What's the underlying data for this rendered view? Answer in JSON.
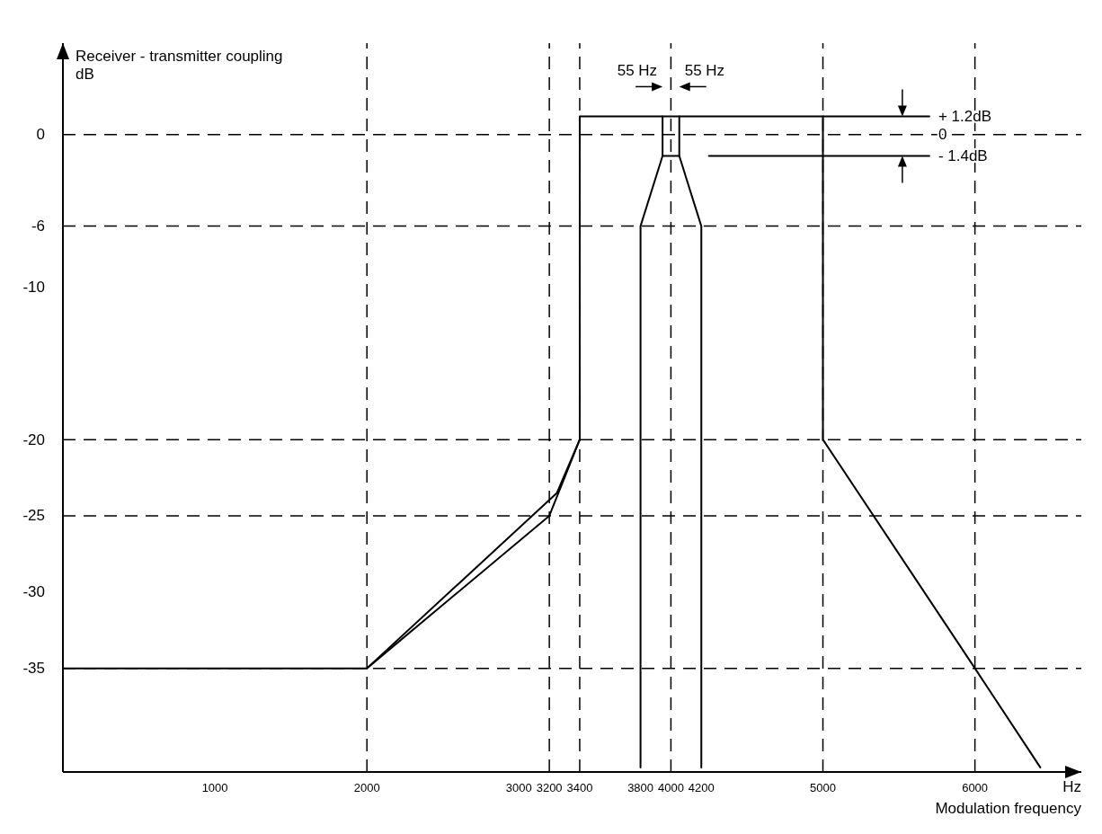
{
  "chart_data": {
    "type": "line",
    "ylabel": "Receiver - transmitter coupling\ndB",
    "xlabel": "Hz\nModulation frequency",
    "xlim": [
      0,
      6700
    ],
    "ylim": [
      -41.8,
      6
    ],
    "xticks": [
      1000,
      2000,
      3000,
      3200,
      3400,
      3800,
      4000,
      4200,
      5000,
      6000
    ],
    "yticks": [
      0,
      -6,
      -10,
      -20,
      -25,
      -30,
      -35
    ],
    "grid": false,
    "marker": "none",
    "line_style": "solid",
    "series": [
      {
        "color": "#000000",
        "x": [
          0,
          2000,
          3200,
          3400,
          3400,
          5000,
          5000,
          6000,
          6430
        ],
        "values": [
          -35,
          -35,
          -25,
          -20,
          1.2,
          1.2,
          -20,
          -35,
          -41.5
        ]
      },
      {
        "color": "#000000",
        "x": [
          2000,
          3250,
          3400
        ],
        "values": [
          -35,
          -23.5,
          -20
        ]
      },
      {
        "color": "#000000",
        "x": [
          3800,
          3800,
          3945,
          4055,
          4200,
          4200
        ],
        "values": [
          -41.5,
          -6,
          -1.4,
          -1.4,
          -6,
          -41.5
        ]
      },
      {
        "color": "#000000",
        "x": [
          3945,
          3945
        ],
        "values": [
          -1.4,
          1.2
        ]
      },
      {
        "color": "#000000",
        "x": [
          4055,
          4055
        ],
        "values": [
          -1.4,
          1.2
        ]
      },
      {
        "color": "#000000",
        "x": [
          5000,
          5700
        ],
        "values": [
          1.2,
          1.2
        ]
      },
      {
        "color": "#000000",
        "x": [
          4250,
          5700
        ],
        "values": [
          -1.4,
          -1.4
        ]
      }
    ],
    "ref_lines": [
      {
        "axis": "y",
        "value": 0,
        "line_style": "dashed"
      },
      {
        "axis": "y",
        "value": -6,
        "line_style": "dashed"
      },
      {
        "axis": "y",
        "value": -20,
        "line_style": "dashed"
      },
      {
        "axis": "y",
        "value": -25,
        "line_style": "dashed"
      },
      {
        "axis": "y",
        "value": -35,
        "line_style": "dashed"
      },
      {
        "axis": "x",
        "value": 2000,
        "line_style": "dashed"
      },
      {
        "axis": "x",
        "value": 3200,
        "line_style": "dashed"
      },
      {
        "axis": "x",
        "value": 3400,
        "line_style": "dashed"
      },
      {
        "axis": "x",
        "value": 4000,
        "line_style": "dashed"
      },
      {
        "axis": "x",
        "value": 5000,
        "line_style": "dashed"
      },
      {
        "axis": "x",
        "value": 6000,
        "line_style": "dashed"
      }
    ],
    "annotations": [
      {
        "text": "55 Hz",
        "x": 3945,
        "y": 1.2
      },
      {
        "text": "55 Hz",
        "x": 4055,
        "y": 1.2
      },
      {
        "text": "+ 1.2dB",
        "x": 5700,
        "y": 1.2
      },
      {
        "text": "0",
        "x": 5700,
        "y": 0
      },
      {
        "text": "- 1.4dB",
        "x": 5700,
        "y": -1.4
      }
    ]
  }
}
